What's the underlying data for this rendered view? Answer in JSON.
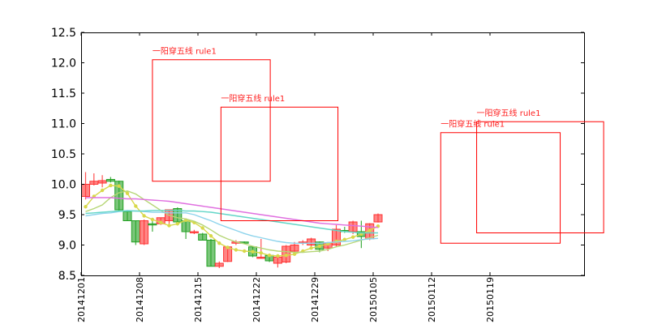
{
  "chart_data": {
    "type": "candlestick",
    "ylim": [
      8.5,
      12.5
    ],
    "y_ticks": [
      "8.5",
      "9.0",
      "9.5",
      "10.0",
      "10.5",
      "11.0",
      "11.5",
      "12.0",
      "12.5"
    ],
    "x_tick_labels": [
      "20141201",
      "20141208",
      "20141215",
      "20141222",
      "20141229",
      "20150105",
      "20150112",
      "20150119"
    ],
    "candles": [
      {
        "o": 9.8,
        "h": 10.2,
        "l": 9.75,
        "c": 10.0
      },
      {
        "o": 10.0,
        "h": 10.18,
        "l": 9.98,
        "c": 10.05
      },
      {
        "o": 10.02,
        "h": 10.15,
        "l": 9.95,
        "c": 10.06
      },
      {
        "o": 10.08,
        "h": 10.12,
        "l": 10.03,
        "c": 10.05
      },
      {
        "o": 10.05,
        "h": 10.06,
        "l": 9.55,
        "c": 9.58
      },
      {
        "o": 9.55,
        "h": 9.56,
        "l": 9.4,
        "c": 9.4
      },
      {
        "o": 9.4,
        "h": 9.4,
        "l": 9.0,
        "c": 9.05
      },
      {
        "o": 9.02,
        "h": 9.42,
        "l": 9.0,
        "c": 9.4
      },
      {
        "o": 9.35,
        "h": 9.4,
        "l": 9.22,
        "c": 9.33
      },
      {
        "o": 9.35,
        "h": 9.45,
        "l": 9.33,
        "c": 9.45
      },
      {
        "o": 9.4,
        "h": 9.58,
        "l": 9.35,
        "c": 9.58
      },
      {
        "o": 9.6,
        "h": 9.62,
        "l": 9.35,
        "c": 9.38
      },
      {
        "o": 9.4,
        "h": 9.42,
        "l": 9.1,
        "c": 9.22
      },
      {
        "o": 9.2,
        "h": 9.25,
        "l": 9.18,
        "c": 9.22
      },
      {
        "o": 9.18,
        "h": 9.2,
        "l": 9.08,
        "c": 9.08
      },
      {
        "o": 9.08,
        "h": 9.1,
        "l": 8.65,
        "c": 8.65
      },
      {
        "o": 8.65,
        "h": 8.73,
        "l": 8.62,
        "c": 8.7
      },
      {
        "o": 8.73,
        "h": 8.98,
        "l": 8.72,
        "c": 8.97
      },
      {
        "o": 9.03,
        "h": 9.08,
        "l": 9.0,
        "c": 9.05
      },
      {
        "o": 9.05,
        "h": 9.06,
        "l": 9.02,
        "c": 9.03
      },
      {
        "o": 8.97,
        "h": 8.98,
        "l": 8.8,
        "c": 8.82
      },
      {
        "o": 8.8,
        "h": 9.1,
        "l": 8.78,
        "c": 8.8
      },
      {
        "o": 8.83,
        "h": 8.85,
        "l": 8.72,
        "c": 8.74
      },
      {
        "o": 8.7,
        "h": 8.82,
        "l": 8.63,
        "c": 8.8
      },
      {
        "o": 8.72,
        "h": 9.0,
        "l": 8.7,
        "c": 8.98
      },
      {
        "o": 8.9,
        "h": 9.05,
        "l": 8.88,
        "c": 9.0
      },
      {
        "o": 9.03,
        "h": 9.08,
        "l": 9.0,
        "c": 9.05
      },
      {
        "o": 9.0,
        "h": 9.12,
        "l": 8.98,
        "c": 9.1
      },
      {
        "o": 9.05,
        "h": 9.06,
        "l": 8.88,
        "c": 8.93
      },
      {
        "o": 8.95,
        "h": 9.05,
        "l": 8.9,
        "c": 9.03
      },
      {
        "o": 9.0,
        "h": 9.33,
        "l": 8.97,
        "c": 9.26
      },
      {
        "o": 9.24,
        "h": 9.3,
        "l": 9.2,
        "c": 9.22
      },
      {
        "o": 9.22,
        "h": 9.4,
        "l": 9.18,
        "c": 9.38
      },
      {
        "o": 9.22,
        "h": 9.4,
        "l": 8.95,
        "c": 9.14
      },
      {
        "o": 9.1,
        "h": 9.36,
        "l": 9.08,
        "c": 9.35
      },
      {
        "o": 9.38,
        "h": 9.52,
        "l": 9.37,
        "c": 9.5
      }
    ],
    "ma_lines": [
      {
        "color": "#d8d84a",
        "markers": true,
        "values": [
          9.63,
          9.8,
          9.9,
          9.98,
          9.97,
          9.85,
          9.64,
          9.48,
          9.42,
          9.37,
          9.32,
          9.35,
          9.41,
          9.37,
          9.28,
          9.15,
          9.03,
          8.96,
          8.92,
          8.9,
          8.89,
          8.87,
          8.83,
          8.82,
          8.83,
          8.85,
          8.9,
          8.95,
          8.98,
          9.02,
          9.06,
          9.09,
          9.13,
          9.18,
          9.24,
          9.31
        ]
      },
      {
        "color": "#b6d676",
        "markers": false,
        "values": [
          9.55,
          9.6,
          9.66,
          9.78,
          9.86,
          9.89,
          9.84,
          9.75,
          9.66,
          9.57,
          9.49,
          9.45,
          9.43,
          9.39,
          9.33,
          9.25,
          9.16,
          9.1,
          9.05,
          9.02,
          8.98,
          8.95,
          8.92,
          8.9,
          8.89,
          8.88,
          8.88,
          8.89,
          8.9,
          8.93,
          8.97,
          9.0,
          9.04,
          9.08,
          9.12,
          9.16
        ]
      },
      {
        "color": "#8ed4ec",
        "markers": false,
        "values": [
          9.48,
          9.5,
          9.52,
          9.53,
          9.55,
          9.57,
          9.56,
          9.55,
          9.54,
          9.54,
          9.53,
          9.53,
          9.53,
          9.5,
          9.45,
          9.4,
          9.34,
          9.29,
          9.24,
          9.19,
          9.15,
          9.12,
          9.09,
          9.06,
          9.04,
          9.03,
          9.03,
          9.03,
          9.03,
          9.04,
          9.05,
          9.06,
          9.07,
          9.09,
          9.1,
          9.11
        ]
      },
      {
        "color": "#63d6c8",
        "markers": false,
        "values": [
          9.52,
          9.53,
          9.54,
          9.55,
          9.56,
          9.56,
          9.56,
          9.56,
          9.57,
          9.57,
          9.57,
          9.57,
          9.56,
          9.56,
          9.55,
          9.54,
          9.52,
          9.5,
          9.48,
          9.46,
          9.44,
          9.42,
          9.4,
          9.38,
          9.36,
          9.34,
          9.32,
          9.3,
          9.28,
          9.26,
          9.24,
          9.22,
          9.21,
          9.2,
          9.2,
          9.2
        ]
      },
      {
        "color": "#e070e0",
        "markers": false,
        "values": [
          9.78,
          9.78,
          9.78,
          9.78,
          9.77,
          9.76,
          9.76,
          9.75,
          9.74,
          9.73,
          9.72,
          9.7,
          9.68,
          9.66,
          9.64,
          9.62,
          9.6,
          9.58,
          9.56,
          9.54,
          9.52,
          9.5,
          9.48,
          9.46,
          9.44,
          9.42,
          9.4,
          9.38,
          9.36,
          9.35,
          9.34,
          9.33,
          9.32,
          9.31,
          9.3,
          9.29
        ]
      }
    ],
    "annotations": [
      {
        "text": "一阳穿五线 rule1",
        "x_index": 8.0,
        "y_top": 12.05,
        "x_end_index": 22.1,
        "y_bottom": 10.05,
        "label_y": 12.2
      },
      {
        "text": "一阳穿五线 rule1",
        "x_index": 16.2,
        "y_top": 11.27,
        "x_end_index": 30.2,
        "y_bottom": 9.4,
        "label_y": 11.42
      },
      {
        "text": "一阳穿五线 rule1",
        "x_index": 42.5,
        "y_top": 10.85,
        "x_end_index": 56.8,
        "y_bottom": 9.03,
        "label_y": 11.0
      },
      {
        "text": "一阳穿五线 rule1",
        "x_index": 46.8,
        "y_top": 11.03,
        "x_end_index": 62.0,
        "y_bottom": 9.2,
        "label_y": 11.18
      }
    ],
    "colors": {
      "up": "#ff3333",
      "down": "#22a022",
      "annotation": "#ff0000"
    }
  }
}
